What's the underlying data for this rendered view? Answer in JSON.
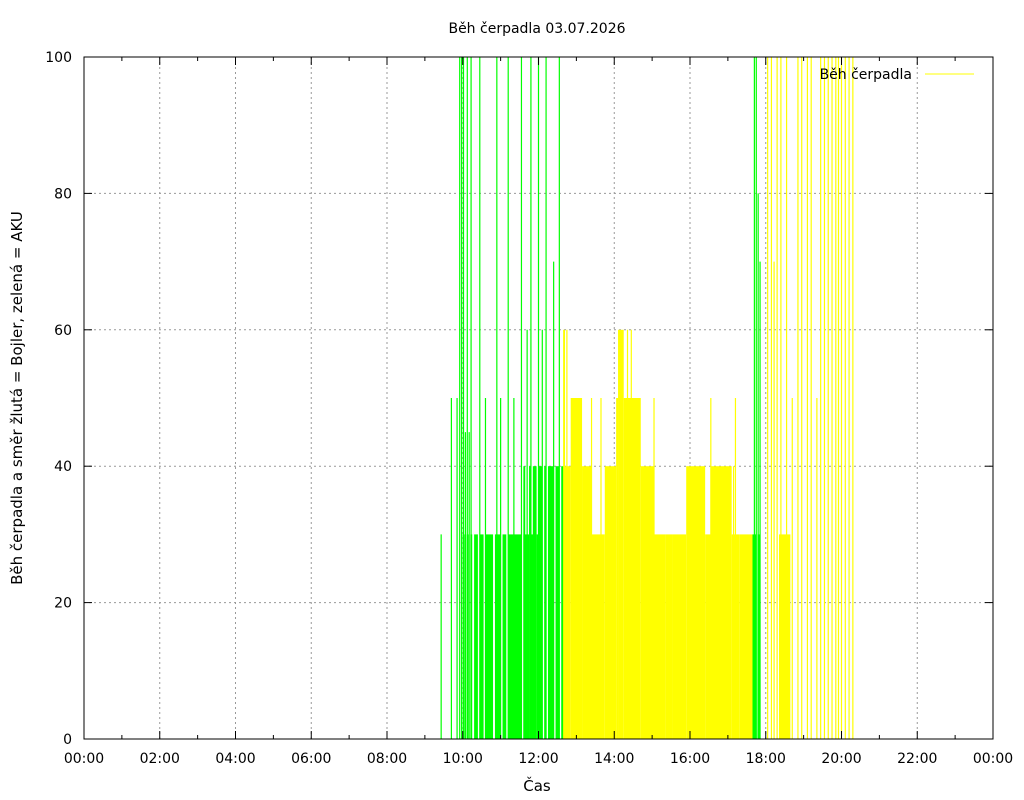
{
  "chart_data": {
    "type": "area",
    "title": "Běh čerpadla 03.07.2026",
    "xlabel": "Čas",
    "ylabel": "Běh čerpadla a směr žlutá = Bojler, zelená = AKU",
    "xlim": [
      0,
      24
    ],
    "ylim": [
      0,
      100
    ],
    "x_ticks": [
      "00:00",
      "02:00",
      "04:00",
      "06:00",
      "08:00",
      "10:00",
      "12:00",
      "14:00",
      "16:00",
      "18:00",
      "20:00",
      "22:00",
      "00:00"
    ],
    "y_ticks": [
      0,
      20,
      40,
      60,
      80,
      100
    ],
    "grid": true,
    "legend": {
      "label": "Běh čerpadla",
      "placement": "top-right"
    },
    "colors": {
      "aku": "#00ff00",
      "bojler": "#ffff00"
    },
    "aku_segments": [
      [
        10.0,
        10.05,
        30
      ],
      [
        10.1,
        10.15,
        30
      ],
      [
        10.2,
        10.25,
        30
      ],
      [
        10.3,
        10.4,
        30
      ],
      [
        10.45,
        10.55,
        30
      ],
      [
        10.6,
        10.8,
        30
      ],
      [
        10.85,
        11.0,
        30
      ],
      [
        11.05,
        11.15,
        30
      ],
      [
        11.2,
        11.55,
        30
      ],
      [
        11.6,
        11.75,
        30
      ],
      [
        11.8,
        11.9,
        30
      ],
      [
        11.95,
        12.0,
        30
      ],
      [
        11.6,
        11.65,
        40
      ],
      [
        11.75,
        11.8,
        40
      ],
      [
        11.85,
        11.95,
        40
      ],
      [
        12.0,
        12.1,
        40
      ],
      [
        12.15,
        12.2,
        40
      ],
      [
        12.25,
        12.4,
        40
      ],
      [
        12.45,
        12.55,
        40
      ],
      [
        12.6,
        12.68,
        40
      ],
      [
        17.65,
        17.75,
        30
      ],
      [
        17.78,
        17.85,
        30
      ]
    ],
    "aku_spikes": [
      [
        9.43,
        30
      ],
      [
        9.7,
        50
      ],
      [
        9.85,
        50
      ],
      [
        9.92,
        100
      ],
      [
        9.97,
        100
      ],
      [
        10.02,
        100
      ],
      [
        10.07,
        45
      ],
      [
        10.12,
        100
      ],
      [
        10.17,
        45
      ],
      [
        10.22,
        100
      ],
      [
        10.45,
        100
      ],
      [
        10.6,
        50
      ],
      [
        10.9,
        100
      ],
      [
        11.0,
        50
      ],
      [
        11.2,
        100
      ],
      [
        11.35,
        50
      ],
      [
        11.55,
        100
      ],
      [
        11.7,
        60
      ],
      [
        11.8,
        100
      ],
      [
        12.0,
        100
      ],
      [
        12.1,
        60
      ],
      [
        12.2,
        100
      ],
      [
        12.4,
        70
      ],
      [
        12.55,
        100
      ],
      [
        17.7,
        100
      ],
      [
        17.75,
        100
      ],
      [
        17.8,
        80
      ],
      [
        17.85,
        70
      ]
    ],
    "bojler_segments": [
      [
        12.65,
        12.7,
        60
      ],
      [
        12.7,
        12.85,
        40
      ],
      [
        12.85,
        13.15,
        50
      ],
      [
        13.15,
        13.4,
        40
      ],
      [
        13.4,
        13.75,
        30
      ],
      [
        13.75,
        14.05,
        40
      ],
      [
        14.05,
        14.1,
        50
      ],
      [
        14.1,
        14.25,
        60
      ],
      [
        14.25,
        14.35,
        50
      ],
      [
        14.35,
        14.7,
        50
      ],
      [
        14.7,
        15.05,
        40
      ],
      [
        15.05,
        15.35,
        30
      ],
      [
        15.35,
        15.55,
        30
      ],
      [
        15.55,
        15.9,
        30
      ],
      [
        15.9,
        16.4,
        40
      ],
      [
        16.4,
        16.55,
        30
      ],
      [
        16.55,
        17.1,
        40
      ],
      [
        17.1,
        17.3,
        30
      ],
      [
        17.3,
        17.65,
        30
      ],
      [
        18.35,
        18.65,
        30
      ]
    ],
    "bojler_spikes": [
      [
        12.75,
        60
      ],
      [
        12.9,
        50
      ],
      [
        13.1,
        50
      ],
      [
        13.4,
        50
      ],
      [
        13.65,
        50
      ],
      [
        14.35,
        60
      ],
      [
        14.45,
        60
      ],
      [
        15.05,
        50
      ],
      [
        16.55,
        50
      ],
      [
        17.15,
        40
      ],
      [
        17.2,
        50
      ],
      [
        18.05,
        100
      ],
      [
        18.15,
        100
      ],
      [
        18.22,
        70
      ],
      [
        18.3,
        100
      ],
      [
        18.4,
        100
      ],
      [
        18.55,
        100
      ],
      [
        18.7,
        50
      ],
      [
        18.85,
        100
      ],
      [
        18.95,
        100
      ],
      [
        19.1,
        100
      ],
      [
        19.2,
        100
      ],
      [
        19.35,
        50
      ],
      [
        19.45,
        100
      ],
      [
        19.55,
        100
      ],
      [
        19.65,
        100
      ],
      [
        19.75,
        100
      ],
      [
        19.85,
        100
      ],
      [
        19.92,
        100
      ],
      [
        20.0,
        100
      ],
      [
        20.1,
        100
      ],
      [
        20.2,
        100
      ],
      [
        20.3,
        100
      ]
    ]
  }
}
